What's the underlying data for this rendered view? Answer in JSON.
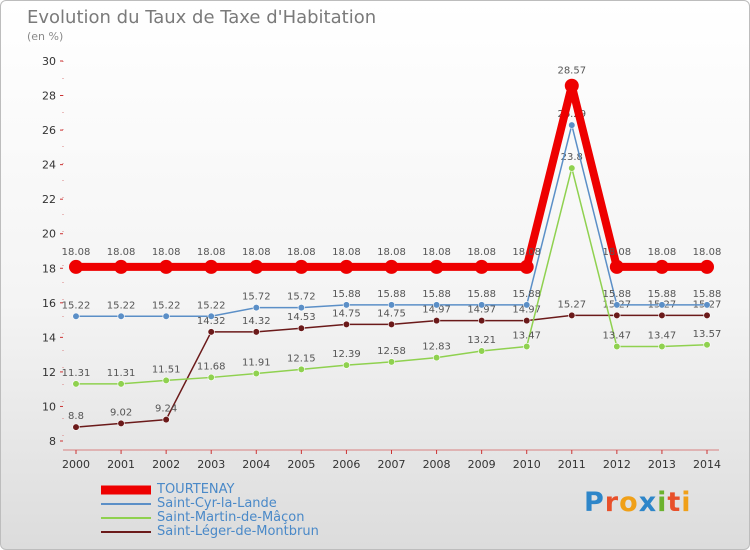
{
  "header": {
    "title": "Evolution du Taux de Taxe d'Habitation",
    "subtitle": "(en %)"
  },
  "brand": {
    "letters": [
      "P",
      "r",
      "o",
      "x",
      "i",
      "t",
      "i"
    ],
    "colors": [
      "#2e86c9",
      "#e8502a",
      "#f0a018",
      "#2e86c9",
      "#6bb22e",
      "#e8502a",
      "#f0a018"
    ]
  },
  "chart_data": {
    "type": "line",
    "title": "Evolution du Taux de Taxe d'Habitation",
    "ylabel": "(en %)",
    "xlabel": "",
    "ylim": [
      8,
      30
    ],
    "yticks": [
      8,
      10,
      12,
      14,
      16,
      18,
      20,
      22,
      24,
      26,
      28,
      30
    ],
    "categories": [
      "2000",
      "2001",
      "2002",
      "2003",
      "2004",
      "2005",
      "2006",
      "2007",
      "2008",
      "2009",
      "2010",
      "2011",
      "2012",
      "2013",
      "2014"
    ],
    "grid": false,
    "legend_position": "bottom-left",
    "series": [
      {
        "name": "TOURTENAY",
        "color": "#ee0000",
        "values": [
          18.08,
          18.08,
          18.08,
          18.08,
          18.08,
          18.08,
          18.08,
          18.08,
          18.08,
          18.08,
          18.08,
          28.57,
          18.08,
          18.08,
          18.08
        ],
        "labels": [
          "18.08",
          "18.08",
          "18.08",
          "18.08",
          "18.08",
          "18.08",
          "18.08",
          "18.08",
          "18.08",
          "18.08",
          "18.08",
          "28.57",
          "18.08",
          "18.08",
          "18.08"
        ]
      },
      {
        "name": "Saint-Cyr-la-Lande",
        "color": "#5b8fc7",
        "values": [
          15.22,
          15.22,
          15.22,
          15.22,
          15.72,
          15.72,
          15.88,
          15.88,
          15.88,
          15.88,
          15.88,
          26.29,
          15.88,
          15.88,
          15.88
        ],
        "labels": [
          "15.22",
          "15.22",
          "15.22",
          "15.22",
          "15.72",
          "15.72",
          "15.88",
          "15.88",
          "15.88",
          "15.88",
          "15.88",
          "26.29",
          "15.88",
          "15.88",
          "15.88"
        ]
      },
      {
        "name": "Saint-Martin-de-Mâçon",
        "color": "#8fd14f",
        "values": [
          11.31,
          11.31,
          11.51,
          11.68,
          11.91,
          12.15,
          12.39,
          12.58,
          12.83,
          13.21,
          13.47,
          23.8,
          13.47,
          13.47,
          13.57
        ],
        "labels": [
          "11.31",
          "11.31",
          "11.51",
          "11.68",
          "11.91",
          "12.15",
          "12.39",
          "12.58",
          "12.83",
          "13.21",
          "13.47",
          "23.8",
          "13.47",
          "13.47",
          "13.57"
        ]
      },
      {
        "name": "Saint-Léger-de-Montbrun",
        "color": "#6b1a1a",
        "values": [
          8.8,
          9.02,
          9.24,
          14.32,
          14.32,
          14.53,
          14.75,
          14.75,
          14.97,
          14.97,
          14.97,
          15.27,
          15.27,
          15.27,
          15.27
        ],
        "labels": [
          "8.8",
          "9.02",
          "9.24",
          "14.32",
          "14.32",
          "14.53",
          "14.75",
          "14.75",
          "14.97",
          "14.97",
          "14.97",
          "15.27",
          "15.27",
          "15.27",
          "15.27"
        ]
      }
    ]
  }
}
